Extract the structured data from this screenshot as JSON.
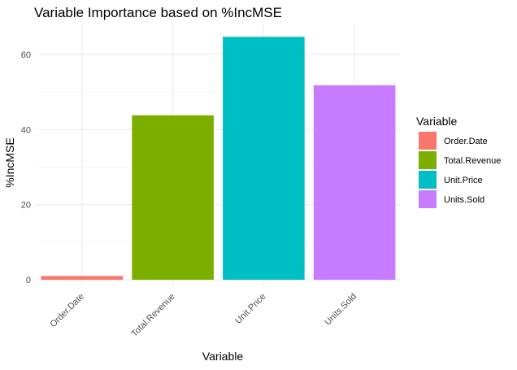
{
  "chart_data": {
    "type": "bar",
    "title": "Variable Importance based on %IncMSE",
    "xlabel": "Variable",
    "ylabel": "%IncMSE",
    "categories": [
      "Order.Date",
      "Total.Revenue",
      "Unit.Price",
      "Units.Sold"
    ],
    "values": [
      1.0,
      43.8,
      64.7,
      51.8
    ],
    "colors": [
      "#F8766D",
      "#7CAE00",
      "#00BFC4",
      "#C77CFF"
    ],
    "ylim": [
      -1.5,
      68
    ],
    "yticks": [
      0,
      20,
      40,
      60
    ],
    "grid": true,
    "legend": {
      "title": "Variable",
      "position": "right",
      "entries": [
        "Order.Date",
        "Total.Revenue",
        "Unit.Price",
        "Units.Sold"
      ]
    }
  }
}
